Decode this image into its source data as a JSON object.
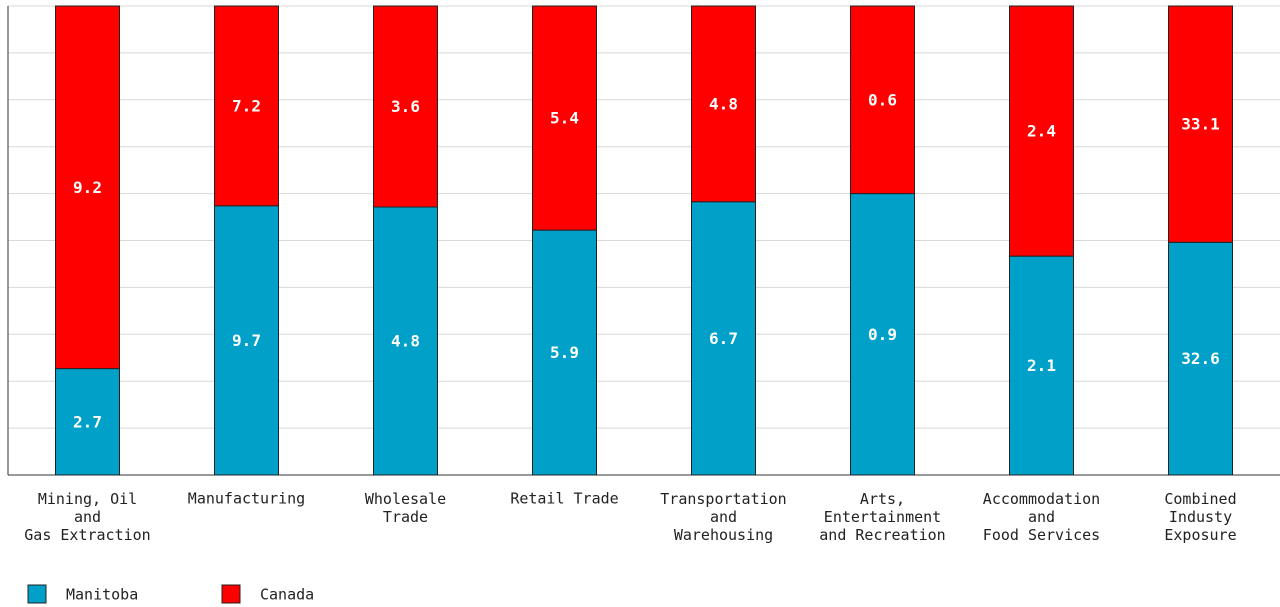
{
  "chart_data": {
    "type": "bar",
    "stacking": "percent",
    "categories": [
      "Mining, Oil\nand\nGas Extraction",
      "Manufacturing",
      "Wholesale\nTrade",
      "Retail Trade",
      "Transportation\nand\nWarehousing",
      "Arts,\nEntertainment\nand Recreation",
      "Accommodation\nand\nFood Services",
      "Combined\nIndusty\nExposure"
    ],
    "series": [
      {
        "name": "Manitoba",
        "color": "#00a0c8",
        "values": [
          2.7,
          9.7,
          4.8,
          5.9,
          6.7,
          0.9,
          2.1,
          32.6
        ]
      },
      {
        "name": "Canada",
        "color": "#ff0000",
        "values": [
          9.2,
          7.2,
          3.6,
          5.4,
          4.8,
          0.6,
          2.4,
          33.1
        ]
      }
    ],
    "ylim": [
      0,
      100
    ],
    "yticks": [
      0,
      10,
      20,
      30,
      40,
      50,
      60,
      70,
      80,
      90,
      100
    ],
    "grid": true,
    "legend": "bottom-left"
  }
}
